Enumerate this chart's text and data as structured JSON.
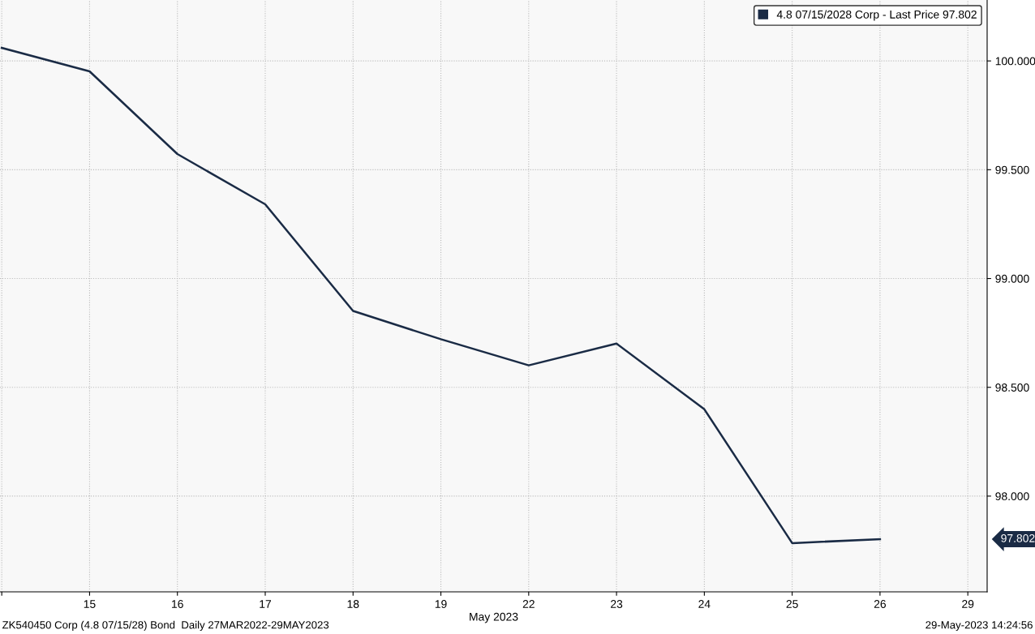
{
  "chart_data": {
    "type": "line",
    "xlabel": "May 2023",
    "categories": [
      null,
      "15",
      "16",
      "17",
      "18",
      "19",
      "22",
      "23",
      "24",
      "25",
      "26",
      "29"
    ],
    "series": [
      {
        "name": "4.8 07/15/2028 Corp - Last Price 97.802",
        "color": "#1a2b45",
        "values": [
          100.06,
          99.952,
          99.572,
          99.341,
          98.851,
          98.721,
          98.601,
          98.701,
          98.399,
          97.784,
          97.802,
          null
        ]
      }
    ],
    "ylim": [
      97.56,
      100.28
    ],
    "yticks": [
      {
        "value": 98,
        "label": "98.000"
      },
      {
        "value": 98.5,
        "label": "98.500"
      },
      {
        "value": 99,
        "label": "99.000"
      },
      {
        "value": 99.5,
        "label": "99.500"
      },
      {
        "value": 100,
        "label": "100.000"
      }
    ],
    "grid": true,
    "legend": "top right",
    "marker": "none",
    "line_style": "solid",
    "annotations": [
      "97.802",
      "ZK540450 Corp (4.8 07/15/28) Bond  Daily 27MAR2022-29MAY2023",
      "29-May-2023 14:24:56"
    ]
  }
}
